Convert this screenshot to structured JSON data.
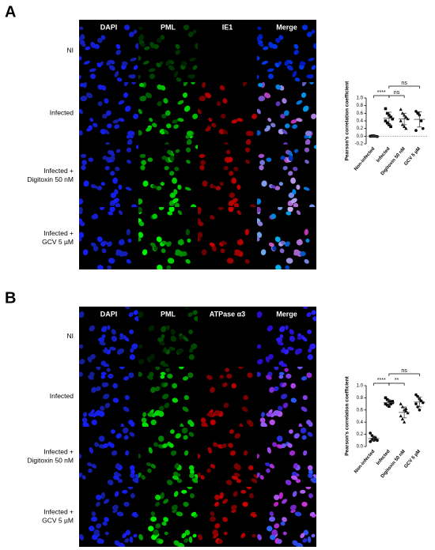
{
  "figure": {
    "panels": [
      {
        "label": "A",
        "columns": [
          "DAPI",
          "PML",
          "IE1",
          "Merge"
        ],
        "rows": [
          "NI",
          "Infected",
          "Infected +\nDigitoxin 50 nM",
          "Infected +\nGCV 5 µM"
        ]
      },
      {
        "label": "B",
        "columns": [
          "DAPI",
          "PML",
          "ATPase α3",
          "Merge"
        ],
        "rows": [
          "NI",
          "Infected",
          "Infected +\nDigitoxin 50 nM",
          "Infected +\nGCV 5 µM"
        ]
      }
    ]
  },
  "chart_data": [
    {
      "type": "scatter",
      "ylabel": "Pearson’s correlation coefficient",
      "categories": [
        "Non-infected",
        "Infected",
        "Digitoxin 50 nM",
        "GCV 5 µM"
      ],
      "points": [
        [
          0,
          0,
          0.01,
          0,
          -0.01,
          0,
          0.01,
          0
        ],
        [
          0.72,
          0.6,
          0.55,
          0.5,
          0.45,
          0.4,
          0.35,
          0.3,
          0.25
        ],
        [
          0.7,
          0.6,
          0.55,
          0.5,
          0.45,
          0.4,
          0.3,
          0.25,
          0.2
        ],
        [
          0.65,
          0.6,
          0.55,
          0.4,
          0.2,
          0.15
        ]
      ],
      "means": [
        0,
        0.47,
        0.45,
        0.44
      ],
      "errors": [
        0.01,
        0.16,
        0.15,
        0.2
      ],
      "markers": [
        "circle",
        "square",
        "triangle",
        "circle"
      ],
      "color": "#000000",
      "ylim": [
        -0.2,
        1.0
      ],
      "yticks": [
        -0.2,
        {
          "value": 0,
          "label": "0.0"
        },
        0.2,
        0.4,
        0.6,
        0.8,
        {
          "value": 1,
          "label": "1.0"
        }
      ],
      "zero_line_color": "#888888",
      "comparisons": [
        {
          "label": "****",
          "groups": [
            "Non-infected",
            "Infected"
          ]
        },
        {
          "label": "ns",
          "groups": [
            "Infected",
            "Digitoxin 50 nM"
          ]
        },
        {
          "label": "ns",
          "groups": [
            "Infected",
            "GCV 5 µM"
          ]
        }
      ]
    },
    {
      "type": "scatter",
      "ylabel": "Pearson’s correlation coefficient",
      "categories": [
        "Non-infected",
        "Infected",
        "Digitoxin 50 nM",
        "GCV 5 µM"
      ],
      "points": [
        [
          0.22,
          0.18,
          0.15,
          0.12,
          0.1,
          0.08,
          0.12,
          0.1,
          0.14
        ],
        [
          0.8,
          0.77,
          0.75,
          0.73,
          0.72,
          0.7,
          0.68,
          0.66,
          0.7,
          0.74
        ],
        [
          0.7,
          0.65,
          0.6,
          0.58,
          0.55,
          0.5,
          0.45,
          0.4,
          0.62
        ],
        [
          0.85,
          0.82,
          0.78,
          0.75,
          0.72,
          0.7,
          0.65,
          0.6
        ]
      ],
      "means": [
        0.13,
        0.72,
        0.56,
        0.73
      ],
      "errors": [
        0.04,
        0.04,
        0.09,
        0.08
      ],
      "markers": [
        "circle",
        "square",
        "triangle",
        "circle"
      ],
      "color": "#000000",
      "ylim": [
        0,
        1.0
      ],
      "yticks": [
        {
          "value": 0,
          "label": "0.0"
        },
        0.2,
        0.4,
        0.6,
        0.8,
        {
          "value": 1,
          "label": "1.0"
        }
      ],
      "comparisons": [
        {
          "label": "****",
          "groups": [
            "Non-infected",
            "Infected"
          ]
        },
        {
          "label": "**",
          "groups": [
            "Infected",
            "Digitoxin 50 nM"
          ]
        },
        {
          "label": "ns",
          "groups": [
            "Infected",
            "GCV 5 µM"
          ]
        }
      ]
    }
  ]
}
